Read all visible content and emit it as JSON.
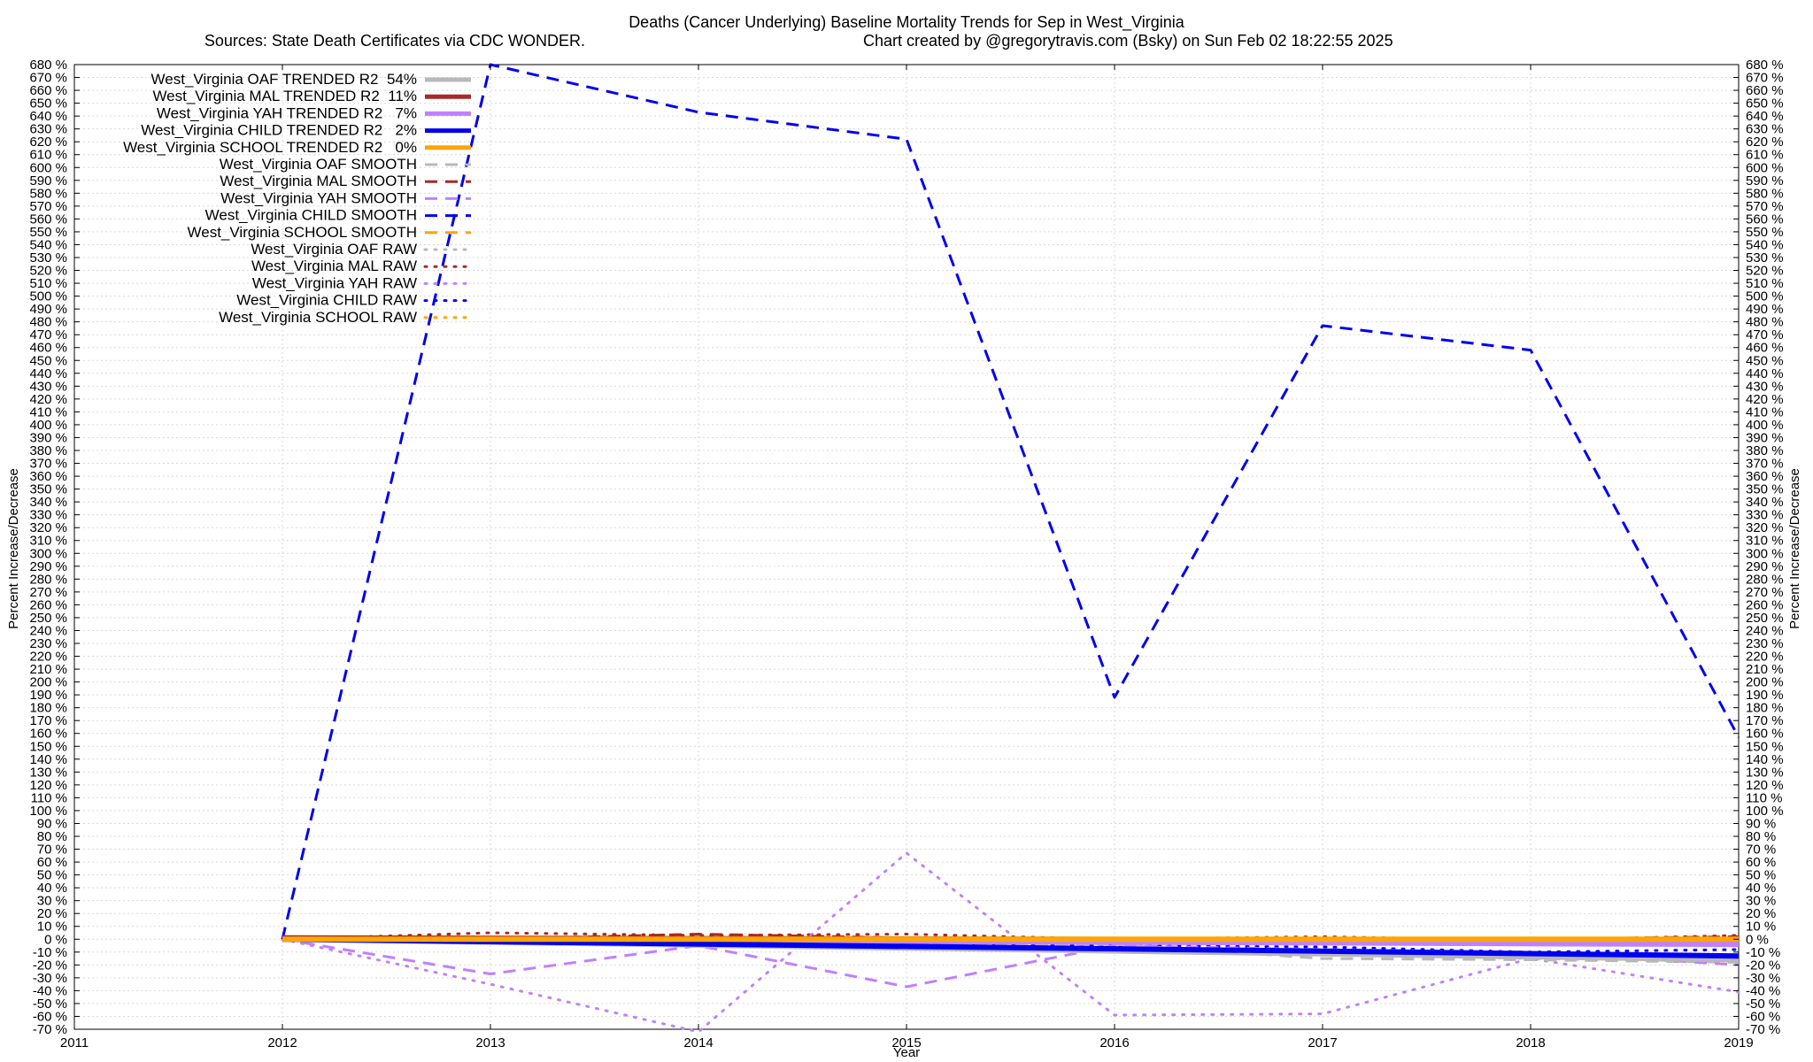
{
  "chart_data": {
    "type": "line",
    "title": "Deaths (Cancer Underlying)  Baseline Mortality Trends for Sep in West_Virginia",
    "subtitle_left": "Sources: State Death Certificates via CDC WONDER.",
    "subtitle_right": "Chart created by @gregorytravis.com (Bsky) on Sun Feb 02 18:22:55 2025",
    "xlabel": "Year",
    "ylabel_left": "Percent Increase/Decrease",
    "ylabel_right": "Percent Increase/Decrease",
    "xlim": [
      2011,
      2019
    ],
    "ylim": [
      -70,
      680
    ],
    "x_ticks": [
      "2011",
      "2012",
      "2013",
      "2014",
      "2015",
      "2016",
      "2017",
      "2018",
      "2019"
    ],
    "y_tick_step": 10,
    "y_tick_suffix": " %",
    "grid": true,
    "legend_position": "top-left",
    "series": [
      {
        "name": "West_Virginia OAF TRENDED R2  54%",
        "style": "solid-thick",
        "color": "#b8b8b8",
        "x": [
          2012,
          2019
        ],
        "y": [
          0,
          -16
        ]
      },
      {
        "name": "West_Virginia MAL TRENDED R2  11%",
        "style": "solid-thick",
        "color": "#a52a2a",
        "x": [
          2012,
          2019
        ],
        "y": [
          1,
          -1
        ]
      },
      {
        "name": "West_Virginia YAH TRENDED R2   7%",
        "style": "solid-thick",
        "color": "#c080ff",
        "x": [
          2012,
          2019
        ],
        "y": [
          0,
          -4
        ]
      },
      {
        "name": "West_Virginia CHILD TRENDED R2   2%",
        "style": "solid-thick",
        "color": "#0000ee",
        "x": [
          2012,
          2019
        ],
        "y": [
          0,
          -13
        ]
      },
      {
        "name": "West_Virginia SCHOOL TRENDED R2   0%",
        "style": "solid-thick",
        "color": "#ffa500",
        "x": [
          2012,
          2019
        ],
        "y": [
          0,
          0
        ]
      },
      {
        "name": "West_Virginia OAF SMOOTH",
        "style": "dashed",
        "color": "#b8b8b8",
        "x": [
          2012,
          2013,
          2014,
          2015,
          2016,
          2017,
          2018,
          2019
        ],
        "y": [
          0,
          -3,
          -2,
          -4,
          -4,
          -15,
          -16,
          -18
        ]
      },
      {
        "name": "West_Virginia MAL SMOOTH",
        "style": "dashed",
        "color": "#a52a2a",
        "x": [
          2012,
          2013,
          2014,
          2015,
          2016,
          2017,
          2018,
          2019
        ],
        "y": [
          0,
          0,
          4,
          1,
          -1,
          0,
          0,
          2
        ]
      },
      {
        "name": "West_Virginia YAH SMOOTH",
        "style": "dashed",
        "color": "#c080ff",
        "x": [
          2012,
          2013,
          2014,
          2015,
          2016,
          2017,
          2018,
          2019
        ],
        "y": [
          0,
          -27,
          -5,
          -37,
          -5,
          -8,
          -10,
          -20
        ]
      },
      {
        "name": "West_Virginia CHILD SMOOTH",
        "style": "dashed",
        "color": "#0000ee",
        "x": [
          2012,
          2013,
          2014,
          2015,
          2016,
          2017,
          2018,
          2019
        ],
        "y": [
          0,
          680,
          643,
          622,
          188,
          477,
          458,
          157
        ]
      },
      {
        "name": "West_Virginia SCHOOL SMOOTH",
        "style": "dashed",
        "color": "#ffa500",
        "x": [
          2012,
          2019
        ],
        "y": [
          0,
          0
        ]
      },
      {
        "name": "West_Virginia OAF RAW",
        "style": "dotted",
        "color": "#b8b8b8",
        "x": [
          2012,
          2013,
          2014,
          2015,
          2016,
          2017,
          2018,
          2019
        ],
        "y": [
          0,
          -2,
          -3,
          -5,
          -5,
          -12,
          -15,
          -17
        ]
      },
      {
        "name": "West_Virginia MAL RAW",
        "style": "dotted",
        "color": "#a52a2a",
        "x": [
          2012,
          2013,
          2014,
          2015,
          2016,
          2017,
          2018,
          2019
        ],
        "y": [
          0,
          5,
          3,
          4,
          0,
          2,
          -1,
          3
        ]
      },
      {
        "name": "West_Virginia YAH RAW",
        "style": "dotted",
        "color": "#c080ff",
        "x": [
          2012,
          2013,
          2014,
          2015,
          2016,
          2017,
          2018,
          2019
        ],
        "y": [
          0,
          -35,
          -72,
          67,
          -59,
          -58,
          -15,
          -41
        ]
      },
      {
        "name": "West_Virginia CHILD RAW",
        "style": "dotted",
        "color": "#0000ee",
        "x": [
          2012,
          2013,
          2014,
          2015,
          2016,
          2017,
          2018,
          2019
        ],
        "y": [
          0,
          -2,
          -3,
          -4,
          -5,
          -6,
          -10,
          -8
        ]
      },
      {
        "name": "West_Virginia SCHOOL RAW",
        "style": "dotted",
        "color": "#ffa500",
        "x": [
          2012,
          2019
        ],
        "y": [
          0,
          0
        ]
      }
    ]
  }
}
